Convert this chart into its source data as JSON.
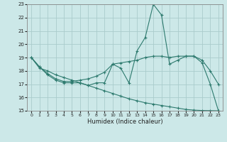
{
  "title": "",
  "xlabel": "Humidex (Indice chaleur)",
  "bg_color": "#cce8e8",
  "line_color": "#2d7a6e",
  "grid_color": "#aacccc",
  "xlim": [
    -0.5,
    23.5
  ],
  "ylim": [
    15,
    23
  ],
  "yticks": [
    15,
    16,
    17,
    18,
    19,
    20,
    21,
    22,
    23
  ],
  "xticks": [
    0,
    1,
    2,
    3,
    4,
    5,
    6,
    7,
    8,
    9,
    10,
    11,
    12,
    13,
    14,
    15,
    16,
    17,
    18,
    19,
    20,
    21,
    22,
    23
  ],
  "line1_x": [
    0,
    1,
    2,
    3,
    4,
    5,
    6,
    7,
    8,
    9,
    10,
    11,
    12,
    13,
    14,
    15,
    16,
    17,
    18,
    19,
    20,
    21,
    22,
    23
  ],
  "line1_y": [
    19.0,
    18.3,
    17.7,
    17.3,
    17.1,
    17.1,
    17.1,
    16.9,
    17.1,
    17.1,
    18.5,
    18.2,
    17.1,
    19.5,
    20.5,
    23.0,
    22.2,
    18.5,
    18.8,
    19.1,
    19.1,
    18.6,
    17.0,
    15.0
  ],
  "line2_x": [
    0,
    1,
    2,
    3,
    4,
    5,
    6,
    7,
    8,
    9,
    10,
    11,
    12,
    13,
    14,
    15,
    16,
    17,
    18,
    19,
    20,
    21,
    22,
    23
  ],
  "line2_y": [
    19.0,
    18.3,
    17.8,
    17.4,
    17.2,
    17.2,
    17.3,
    17.4,
    17.6,
    17.9,
    18.5,
    18.6,
    18.7,
    18.8,
    19.0,
    19.1,
    19.1,
    19.0,
    19.1,
    19.1,
    19.1,
    18.8,
    18.0,
    17.0
  ],
  "line3_x": [
    0,
    1,
    2,
    3,
    4,
    5,
    6,
    7,
    8,
    9,
    10,
    11,
    12,
    13,
    14,
    15,
    16,
    17,
    18,
    19,
    20,
    21,
    22,
    23
  ],
  "line3_y": [
    19.0,
    18.2,
    18.0,
    17.7,
    17.5,
    17.3,
    17.1,
    16.9,
    16.7,
    16.5,
    16.3,
    16.1,
    15.9,
    15.75,
    15.6,
    15.5,
    15.4,
    15.3,
    15.2,
    15.1,
    15.05,
    15.02,
    15.01,
    15.0
  ]
}
